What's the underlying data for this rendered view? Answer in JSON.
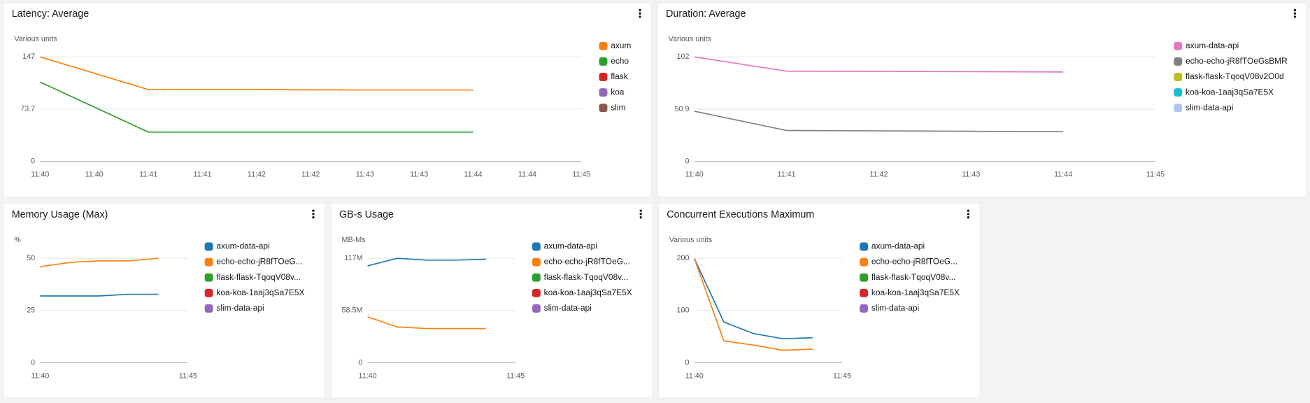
{
  "chart_data": [
    {
      "type": "line",
      "title": "Latency: Average",
      "ylabel": "Various units",
      "x": [
        "11:40",
        "11:41",
        "11:42",
        "11:43",
        "11:44"
      ],
      "xlim": [
        "11:40",
        "11:45"
      ],
      "xticks": [
        "11:40",
        "11:40",
        "11:41",
        "11:41",
        "11:42",
        "11:42",
        "11:43",
        "11:43",
        "11:44",
        "11:44",
        "11:45"
      ],
      "ylim": [
        0,
        147
      ],
      "yticks": [
        0,
        73.7,
        147
      ],
      "grid": true,
      "series": [
        {
          "name": "axum",
          "color": "#ff7f0e",
          "values": [
            147,
            101,
            101,
            100.5,
            100.5
          ]
        },
        {
          "name": "echo",
          "color": "#2ca02c",
          "values": [
            111.7,
            41.2,
            41.2,
            41.2,
            41.2
          ]
        },
        {
          "name": "flask",
          "color": "#d62728",
          "values": [
            null,
            null,
            null,
            null,
            null
          ]
        },
        {
          "name": "koa",
          "color": "#9467bd",
          "values": [
            null,
            null,
            null,
            null,
            null
          ]
        },
        {
          "name": "slim",
          "color": "#8c564b",
          "values": [
            null,
            null,
            null,
            null,
            null
          ]
        }
      ]
    },
    {
      "type": "line",
      "title": "Duration: Average",
      "ylabel": "Various units",
      "x": [
        "11:40",
        "11:41",
        "11:42",
        "11:43",
        "11:44"
      ],
      "xlim": [
        "11:40",
        "11:45"
      ],
      "xticks": [
        "11:40",
        "11:41",
        "11:42",
        "11:43",
        "11:44",
        "11:45"
      ],
      "ylim": [
        0,
        102
      ],
      "yticks": [
        0,
        50.9,
        102
      ],
      "grid": true,
      "series": [
        {
          "name": "axum-data-api",
          "color": "#e377c2",
          "values": [
            102,
            88.1,
            87.9,
            87.6,
            87.3
          ]
        },
        {
          "name": "echo-echo-jR8fTOeGsBMR",
          "color": "#7f7f7f",
          "values": [
            49,
            30.2,
            29.8,
            29.4,
            29
          ]
        },
        {
          "name": "flask-flask-TqoqV08v2O0d",
          "color": "#bcbd22",
          "values": [
            null,
            null,
            null,
            null,
            null
          ]
        },
        {
          "name": "koa-koa-1aaj3qSa7E5X",
          "color": "#17becf",
          "values": [
            null,
            null,
            null,
            null,
            null
          ]
        },
        {
          "name": "slim-data-api",
          "color": "#aec7e8",
          "values": [
            null,
            null,
            null,
            null,
            null
          ]
        }
      ]
    },
    {
      "type": "line",
      "title": "Memory Usage (Max)",
      "ylabel": "%",
      "x": [
        "11:40",
        "11:41",
        "11:42",
        "11:43",
        "11:44"
      ],
      "xlim": [
        "11:40",
        "11:45"
      ],
      "xticks": [
        "11:40",
        "11:45"
      ],
      "ylim": [
        0,
        50
      ],
      "yticks": [
        0,
        25,
        50
      ],
      "grid": true,
      "series": [
        {
          "name": "axum-data-api",
          "color": "#1f77b4",
          "values": [
            32,
            32,
            32,
            32.8,
            32.8
          ]
        },
        {
          "name": "echo-echo-jR8fTOeG...",
          "color": "#ff7f0e",
          "values": [
            46,
            48,
            48.8,
            48.8,
            50
          ]
        },
        {
          "name": "flask-flask-TqoqV08v...",
          "color": "#2ca02c",
          "values": [
            null,
            null,
            null,
            null,
            null
          ]
        },
        {
          "name": "koa-koa-1aaj3qSa7E5X",
          "color": "#d62728",
          "values": [
            null,
            null,
            null,
            null,
            null
          ]
        },
        {
          "name": "slim-data-api",
          "color": "#9467bd",
          "values": [
            null,
            null,
            null,
            null,
            null
          ]
        }
      ]
    },
    {
      "type": "line",
      "title": "GB-s Usage",
      "ylabel": "MB-Ms",
      "x": [
        "11:40",
        "11:41",
        "11:42",
        "11:43",
        "11:44"
      ],
      "xlim": [
        "11:40",
        "11:45"
      ],
      "xticks": [
        "11:40",
        "11:45"
      ],
      "ylim": [
        0,
        117000000
      ],
      "yticks": [
        0,
        {
          "value": 58500000,
          "label": "58.5M"
        },
        {
          "value": 117000000,
          "label": "117M"
        }
      ],
      "grid": true,
      "series": [
        {
          "name": "axum-data-api",
          "color": "#1f77b4",
          "values": [
            108600000,
            117000000,
            115000000,
            115000000,
            116000000
          ]
        },
        {
          "name": "echo-echo-jR8fTOeG...",
          "color": "#ff7f0e",
          "values": [
            51500000,
            40200000,
            38400000,
            38400000,
            38400000
          ]
        },
        {
          "name": "flask-flask-TqoqV08v...",
          "color": "#2ca02c",
          "values": [
            null,
            null,
            null,
            null,
            null
          ]
        },
        {
          "name": "koa-koa-1aaj3qSa7E5X",
          "color": "#d62728",
          "values": [
            null,
            null,
            null,
            null,
            null
          ]
        },
        {
          "name": "slim-data-api",
          "color": "#9467bd",
          "values": [
            null,
            null,
            null,
            null,
            null
          ]
        }
      ]
    },
    {
      "type": "line",
      "title": "Concurrent Executions Maximum",
      "ylabel": "Various units",
      "x": [
        "11:40",
        "11:41",
        "11:42",
        "11:43",
        "11:44"
      ],
      "xlim": [
        "11:40",
        "11:45"
      ],
      "xticks": [
        "11:40",
        "11:45"
      ],
      "ylim": [
        0,
        200
      ],
      "yticks": [
        0,
        100,
        200
      ],
      "grid": true,
      "series": [
        {
          "name": "axum-data-api",
          "color": "#1f77b4",
          "values": [
            200,
            78,
            56,
            46,
            48
          ]
        },
        {
          "name": "echo-echo-jR8fTOeG...",
          "color": "#ff7f0e",
          "values": [
            200,
            42,
            34,
            24,
            26
          ]
        },
        {
          "name": "flask-flask-TqoqV08v...",
          "color": "#2ca02c",
          "values": [
            null,
            null,
            null,
            null,
            null
          ]
        },
        {
          "name": "koa-koa-1aaj3qSa7E5X",
          "color": "#d62728",
          "values": [
            null,
            null,
            null,
            null,
            null
          ]
        },
        {
          "name": "slim-data-api",
          "color": "#9467bd",
          "values": [
            null,
            null,
            null,
            null,
            null
          ]
        }
      ]
    }
  ]
}
